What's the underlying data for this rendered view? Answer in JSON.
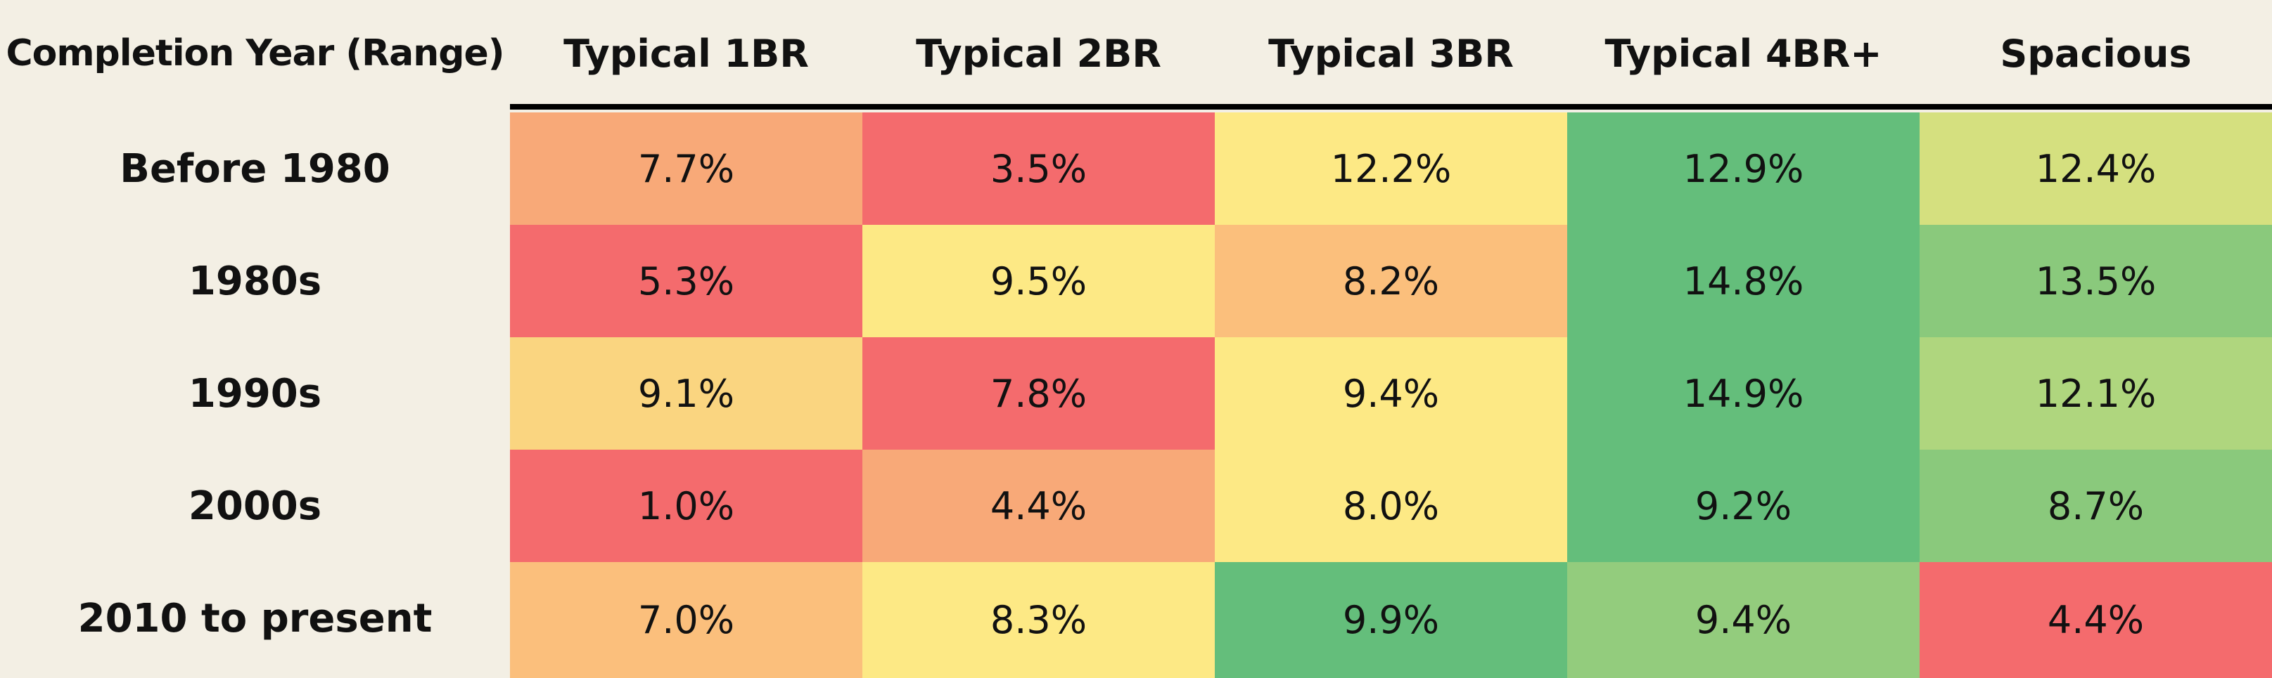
{
  "chart_data": {
    "type": "heatmap",
    "row_header": "Completion Year (Range)",
    "columns": [
      "Typical 1BR",
      "Typical 2BR",
      "Typical 3BR",
      "Typical 4BR+",
      "Spacious"
    ],
    "rows": [
      "Before 1980",
      "1980s",
      "1990s",
      "2000s",
      "2010 to present"
    ],
    "values": [
      [
        7.7,
        3.5,
        12.2,
        12.9,
        12.4
      ],
      [
        5.3,
        9.5,
        8.2,
        14.8,
        13.5
      ],
      [
        9.1,
        7.8,
        9.4,
        14.9,
        12.1
      ],
      [
        1.0,
        4.4,
        8.0,
        9.2,
        8.7
      ],
      [
        7.0,
        8.3,
        9.9,
        9.4,
        4.4
      ]
    ],
    "labels": [
      [
        "7.7%",
        "3.5%",
        "12.2%",
        "12.9%",
        "12.4%"
      ],
      [
        "5.3%",
        "9.5%",
        "8.2%",
        "14.8%",
        "13.5%"
      ],
      [
        "9.1%",
        "7.8%",
        "9.4%",
        "14.9%",
        "12.1%"
      ],
      [
        "1.0%",
        "4.4%",
        "8.0%",
        "9.2%",
        "8.7%"
      ],
      [
        "7.0%",
        "8.3%",
        "9.9%",
        "9.4%",
        "4.4%"
      ]
    ],
    "cell_colors": [
      [
        "#f8a978",
        "#f46b6d",
        "#fde985",
        "#64be7b",
        "#d5e07f"
      ],
      [
        "#f46b6d",
        "#fde985",
        "#fbbf7c",
        "#64be7b",
        "#8ac97c"
      ],
      [
        "#fad580",
        "#f46b6d",
        "#fde985",
        "#64be7b",
        "#afd67e"
      ],
      [
        "#f46b6d",
        "#f8a978",
        "#fde985",
        "#64be7b",
        "#8ac97c"
      ],
      [
        "#fbbf7c",
        "#fde985",
        "#64be7b",
        "#93cc7d",
        "#f46b6d"
      ]
    ],
    "colors": {
      "background": "#f3efe4",
      "text": "#111111",
      "header_rule": "#000000"
    }
  }
}
